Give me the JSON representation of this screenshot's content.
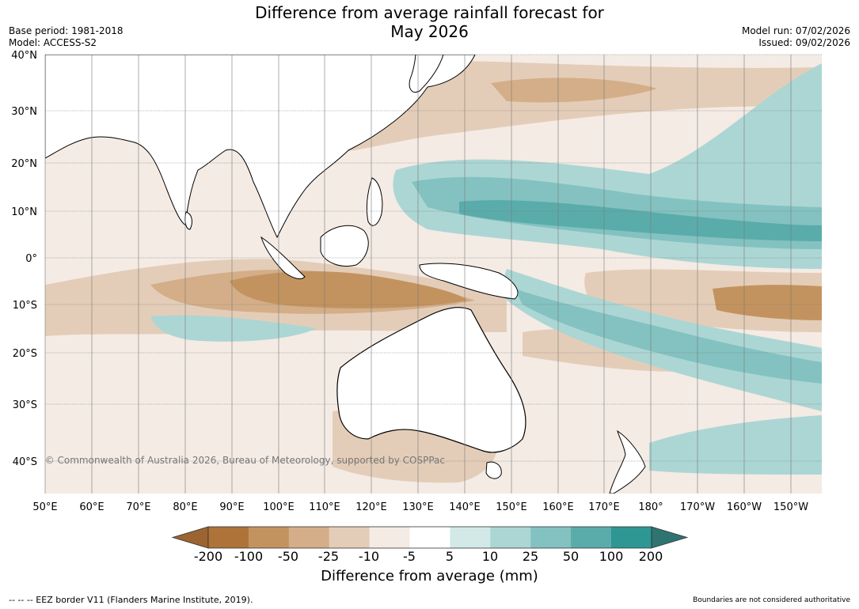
{
  "title": {
    "line1": "Difference from average rainfall forecast for",
    "line2": "May 2026"
  },
  "meta": {
    "base_period": "Base period: 1981-2018",
    "model": "Model: ACCESS-S2",
    "model_run": "Model run: 07/02/2026",
    "issued": "Issued: 09/02/2026"
  },
  "map": {
    "lat_labels": [
      "40°N",
      "30°N",
      "20°N",
      "10°N",
      "0°",
      "10°S",
      "20°S",
      "30°S",
      "40°S"
    ],
    "lon_labels": [
      "50°E",
      "60°E",
      "70°E",
      "80°E",
      "90°E",
      "100°E",
      "110°E",
      "120°E",
      "130°E",
      "140°E",
      "150°E",
      "160°E",
      "170°E",
      "180°",
      "170°W",
      "160°W",
      "150°W"
    ],
    "copyright": "© Commonwealth of Australia 2026, Bureau of Meteorology, supported by COSPPac",
    "land_color": "#ffffff",
    "coast_color": "#000000",
    "border_color": "#888888"
  },
  "colorbar": {
    "ticks": [
      "-200",
      "-100",
      "-50",
      "-25",
      "-10",
      "-5",
      "5",
      "10",
      "25",
      "50",
      "100",
      "200"
    ],
    "colors": [
      "#9c6430",
      "#ad7338",
      "#c3935f",
      "#d4ae88",
      "#e4cdb8",
      "#f4ebe4",
      "#ffffff",
      "#d3e9e8",
      "#acd6d4",
      "#83c2c0",
      "#5aacab",
      "#2e9793",
      "#2f7471"
    ],
    "label": "Difference from average (mm)"
  },
  "footer": {
    "eez": "--  --  -- EEZ border V11 (Flanders Marine Institute, 2019).",
    "authoritative": "Boundaries are not considered authoritative"
  }
}
